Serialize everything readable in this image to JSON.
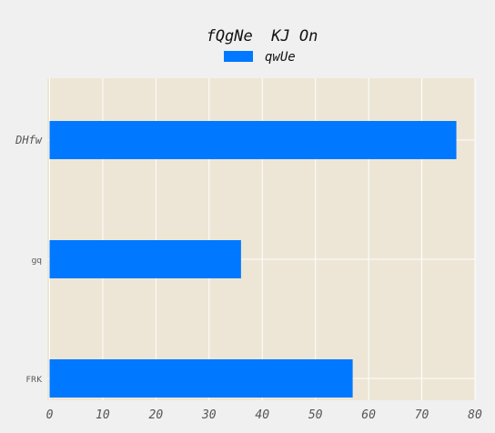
{
  "chart_data": {
    "type": "bar",
    "orientation": "horizontal",
    "title": "fQgNe  KJ On",
    "categories": [
      "DHfw",
      "gq",
      "FRK"
    ],
    "series": [
      {
        "name": "qwUe",
        "values": [
          76.5,
          36,
          57
        ]
      }
    ],
    "xlim": [
      0,
      80
    ],
    "x_ticks": [
      0,
      10,
      20,
      30,
      40,
      50,
      60,
      70,
      80
    ],
    "xlabel": "",
    "ylabel": "",
    "grid": true,
    "legend_position": "top-center",
    "colors": {
      "bar": "#0078ff",
      "plot_background": "#ede6d6",
      "figure_background": "#f0f0f0",
      "grid": "#ffffff"
    }
  }
}
